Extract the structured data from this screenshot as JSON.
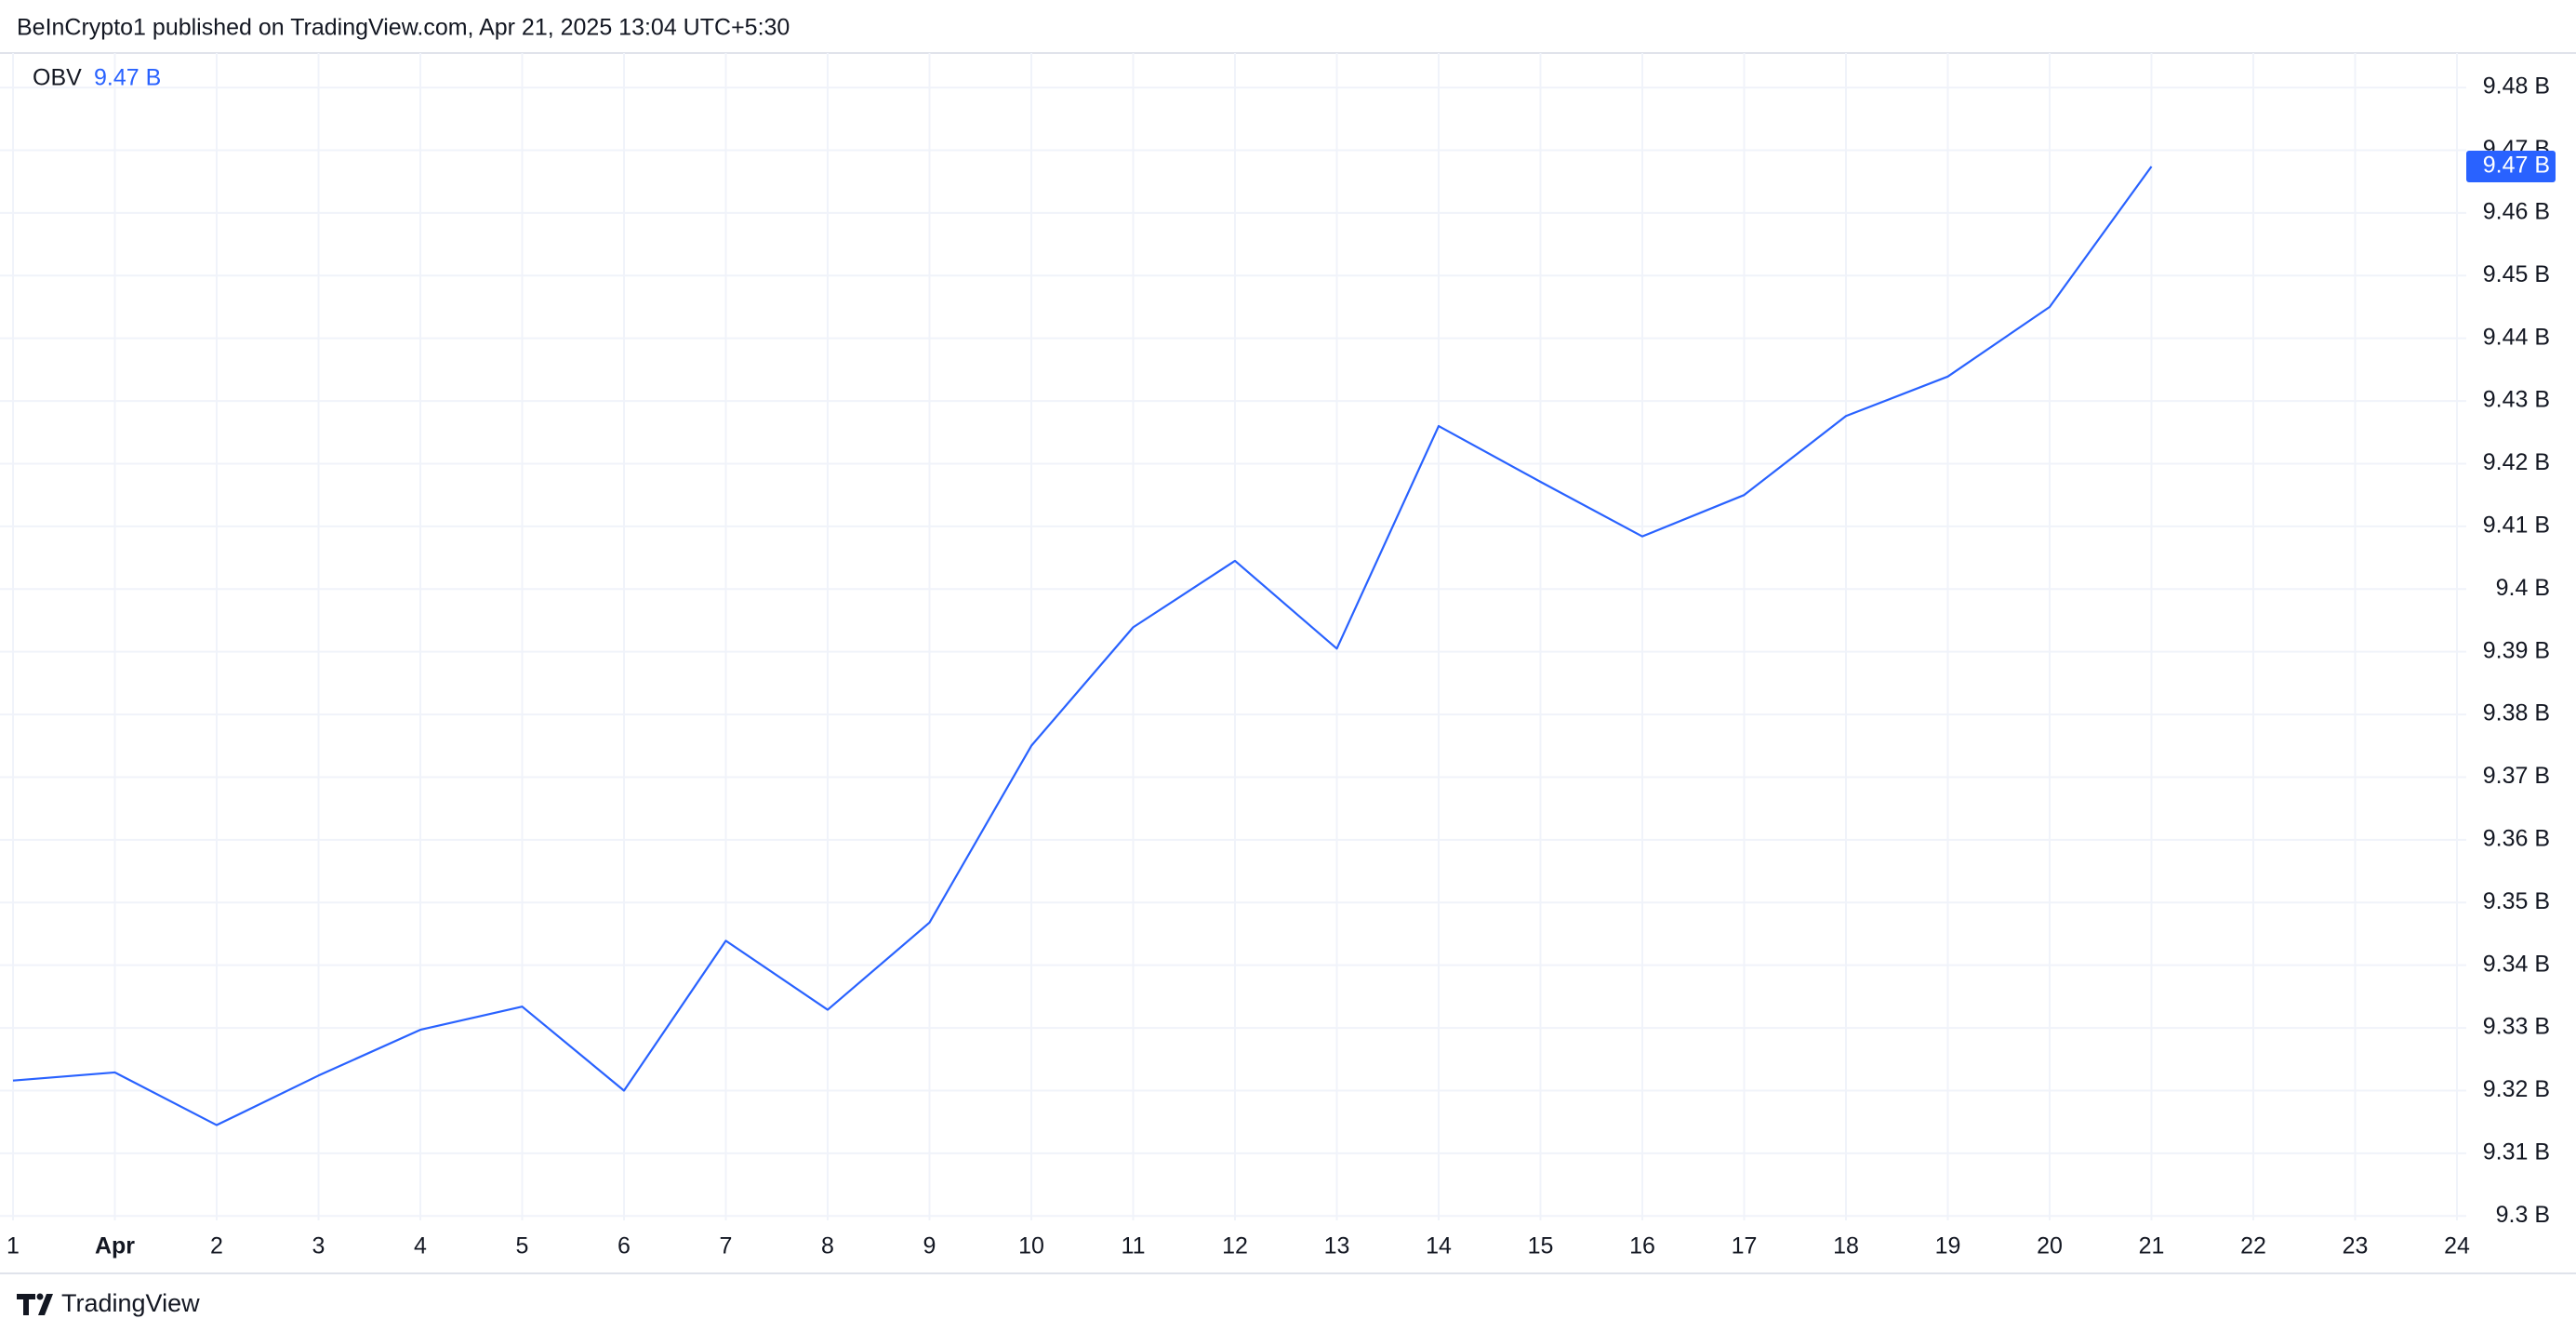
{
  "header": {
    "text": "BeInCrypto1 published on TradingView.com, Apr 21, 2025 13:04 UTC+5:30"
  },
  "footer": {
    "brand": "TradingView"
  },
  "chart_data": {
    "type": "line",
    "title": "OBV",
    "categories": [
      "1",
      "Apr",
      "2",
      "3",
      "4",
      "5",
      "6",
      "7",
      "8",
      "9",
      "10",
      "11",
      "12",
      "13",
      "14",
      "15",
      "16",
      "17",
      "18",
      "19",
      "20",
      "21",
      "22",
      "23",
      "24"
    ],
    "series": [
      {
        "name": "OBV",
        "color": "#2962ff",
        "values": [
          9.3216,
          9.3229,
          9.3145,
          9.3224,
          9.3297,
          9.3334,
          9.32,
          9.3439,
          9.3329,
          9.3468,
          9.375,
          9.3939,
          9.4045,
          9.3905,
          9.426,
          9.4171,
          9.4084,
          9.415,
          9.4276,
          9.4339,
          9.445,
          9.4674,
          null,
          null,
          null
        ],
        "value_labels": [
          null,
          null,
          null,
          null,
          null,
          null,
          null,
          null,
          null,
          null,
          null,
          null,
          null,
          null,
          null,
          null,
          null,
          null,
          null,
          null,
          null,
          "9.47 B",
          null,
          null,
          null
        ]
      }
    ],
    "ylim": [
      9.2993,
      9.4855
    ],
    "yticks": [
      {
        "value": 9.3,
        "label": "9.3 B"
      },
      {
        "value": 9.31,
        "label": "9.31 B"
      },
      {
        "value": 9.32,
        "label": "9.32 B"
      },
      {
        "value": 9.33,
        "label": "9.33 B"
      },
      {
        "value": 9.34,
        "label": "9.34 B"
      },
      {
        "value": 9.35,
        "label": "9.35 B"
      },
      {
        "value": 9.36,
        "label": "9.36 B"
      },
      {
        "value": 9.37,
        "label": "9.37 B"
      },
      {
        "value": 9.38,
        "label": "9.38 B"
      },
      {
        "value": 9.39,
        "label": "9.39 B"
      },
      {
        "value": 9.4,
        "label": "9.4 B"
      },
      {
        "value": 9.41,
        "label": "9.41 B"
      },
      {
        "value": 9.42,
        "label": "9.42 B"
      },
      {
        "value": 9.43,
        "label": "9.43 B"
      },
      {
        "value": 9.44,
        "label": "9.44 B"
      },
      {
        "value": 9.45,
        "label": "9.45 B"
      },
      {
        "value": 9.46,
        "label": "9.46 B"
      },
      {
        "value": 9.47,
        "label": "9.47 B"
      },
      {
        "value": 9.48,
        "label": "9.48 B"
      }
    ],
    "grid": true
  }
}
